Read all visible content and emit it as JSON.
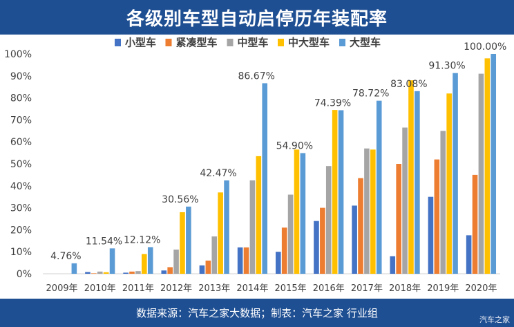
{
  "title": "各级别车型自动启停历年装配率",
  "footer": {
    "source": "数据来源：汽车之家大数据；制表：汽车之家 行业组",
    "watermark": "汽车之家"
  },
  "colors": {
    "banner": "#1f4f93",
    "series": [
      "#4472c4",
      "#ed7d31",
      "#a5a5a5",
      "#ffc000",
      "#5b9bd5"
    ]
  },
  "chart_data": {
    "type": "bar",
    "title": "各级别车型自动启停历年装配率",
    "xlabel": "",
    "ylabel": "",
    "ylim": [
      0,
      100
    ],
    "yticks": [
      "0%",
      "10%",
      "20%",
      "30%",
      "40%",
      "50%",
      "60%",
      "70%",
      "80%",
      "90%",
      "100%"
    ],
    "categories": [
      "2009年",
      "2010年",
      "2011年",
      "2012年",
      "2013年",
      "2014年",
      "2015年",
      "2016年",
      "2017年",
      "2018年",
      "2019年",
      "2020年"
    ],
    "series": [
      {
        "name": "小型车",
        "values": [
          0,
          0.8,
          0.5,
          1.5,
          3.8,
          12,
          10,
          24,
          31,
          8,
          35,
          17.5
        ]
      },
      {
        "name": "紧凑型车",
        "values": [
          0,
          0.2,
          1,
          3,
          6,
          12,
          21,
          30,
          43.5,
          50,
          52,
          45
        ]
      },
      {
        "name": "中型车",
        "values": [
          0,
          1,
          1.2,
          11,
          17,
          42.5,
          36,
          49,
          57,
          66.5,
          65,
          91
        ]
      },
      {
        "name": "中大型车",
        "values": [
          0,
          0.7,
          9,
          28,
          37,
          53.5,
          56.5,
          74.5,
          56.5,
          88,
          82,
          98
        ]
      },
      {
        "name": "大型车",
        "values": [
          4.76,
          11.54,
          12.12,
          30.56,
          42.47,
          86.67,
          54.9,
          74.39,
          78.72,
          83.08,
          91.3,
          100.0
        ]
      }
    ],
    "data_labels": {
      "series": "大型车",
      "labels": [
        "4.76%",
        "11.54%",
        "12.12%",
        "30.56%",
        "42.47%",
        "86.67%",
        "54.90%",
        "74.39%",
        "78.72%",
        "83.08%",
        "91.30%",
        "100.00%"
      ]
    },
    "legend": "top-center",
    "grid": false
  }
}
